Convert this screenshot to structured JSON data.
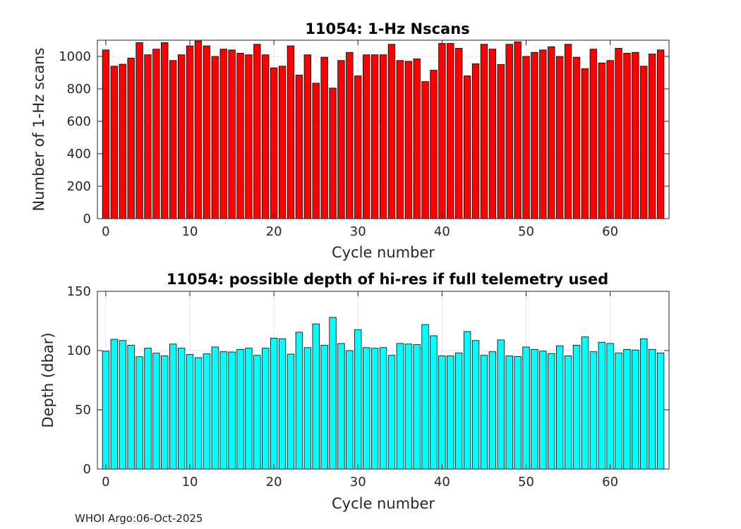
{
  "colors": {
    "top_bar": "#ff0000",
    "bottom_bar": "#00ffff",
    "edge": "#000000",
    "grid": "#e6e6e6"
  },
  "credit": "WHOI Argo:06-Oct-2025",
  "chart_data": [
    {
      "type": "bar",
      "title": "11054: 1-Hz Nscans",
      "xlabel": "Cycle number",
      "ylabel": "Number of 1-Hz scans",
      "xlim": [
        -1,
        67
      ],
      "ylim": [
        0,
        1100
      ],
      "xticks": [
        0,
        10,
        20,
        30,
        40,
        50,
        60
      ],
      "yticks": [
        0,
        200,
        400,
        600,
        800,
        1000
      ],
      "grid": true,
      "x": [
        0,
        1,
        2,
        3,
        4,
        5,
        6,
        7,
        8,
        9,
        10,
        11,
        12,
        13,
        14,
        15,
        16,
        17,
        18,
        19,
        20,
        21,
        22,
        23,
        24,
        25,
        26,
        27,
        28,
        29,
        30,
        31,
        32,
        33,
        34,
        35,
        36,
        37,
        38,
        39,
        40,
        41,
        42,
        43,
        44,
        45,
        46,
        47,
        48,
        49,
        50,
        51,
        52,
        53,
        54,
        55,
        56,
        57,
        58,
        59,
        60,
        61,
        62,
        63,
        64,
        65,
        66
      ],
      "values": [
        1040,
        940,
        952,
        990,
        1085,
        1010,
        1045,
        1085,
        975,
        1010,
        1065,
        1095,
        1065,
        1000,
        1045,
        1040,
        1020,
        1010,
        1075,
        1010,
        930,
        940,
        1065,
        885,
        1010,
        835,
        995,
        805,
        975,
        1025,
        880,
        1010,
        1010,
        1010,
        1075,
        975,
        970,
        985,
        845,
        915,
        1080,
        1080,
        1050,
        880,
        955,
        1075,
        1045,
        950,
        1075,
        1090,
        1000,
        1025,
        1040,
        1060,
        1000,
        1075,
        995,
        925,
        1045,
        960,
        975,
        1050,
        1020,
        1025,
        940,
        1015,
        1040
      ]
    },
    {
      "type": "bar",
      "title": "11054: possible depth of hi-res if full telemetry used",
      "xlabel": "Cycle number",
      "ylabel": "Depth (dbar)",
      "xlim": [
        -1,
        67
      ],
      "ylim": [
        0,
        150
      ],
      "xticks": [
        0,
        10,
        20,
        30,
        40,
        50,
        60
      ],
      "yticks": [
        0,
        50,
        100,
        150
      ],
      "grid": true,
      "x": [
        0,
        1,
        2,
        3,
        4,
        5,
        6,
        7,
        8,
        9,
        10,
        11,
        12,
        13,
        14,
        15,
        16,
        17,
        18,
        19,
        20,
        21,
        22,
        23,
        24,
        25,
        26,
        27,
        28,
        29,
        30,
        31,
        32,
        33,
        34,
        35,
        36,
        37,
        38,
        39,
        40,
        41,
        42,
        43,
        44,
        45,
        46,
        47,
        48,
        49,
        50,
        51,
        52,
        53,
        54,
        55,
        56,
        57,
        58,
        59,
        60,
        61,
        62,
        63,
        64,
        65,
        66
      ],
      "values": [
        99.5,
        109.5,
        108.5,
        104.5,
        94.8,
        102,
        97.8,
        95.5,
        105.5,
        102,
        96.7,
        94,
        97.2,
        103,
        99,
        98.8,
        101,
        102,
        96,
        102,
        110.5,
        110,
        97,
        115.5,
        102.5,
        122.5,
        104.5,
        128,
        106,
        100,
        117.5,
        102.5,
        102,
        102.5,
        96,
        106,
        105.5,
        105,
        122,
        112.5,
        95.5,
        95.5,
        98,
        116,
        108.5,
        96,
        99,
        109,
        95.5,
        95,
        103,
        101,
        99.5,
        97.5,
        104,
        95.5,
        104.5,
        111.5,
        99,
        107,
        106,
        98,
        101,
        100.5,
        110,
        101,
        98
      ]
    }
  ]
}
